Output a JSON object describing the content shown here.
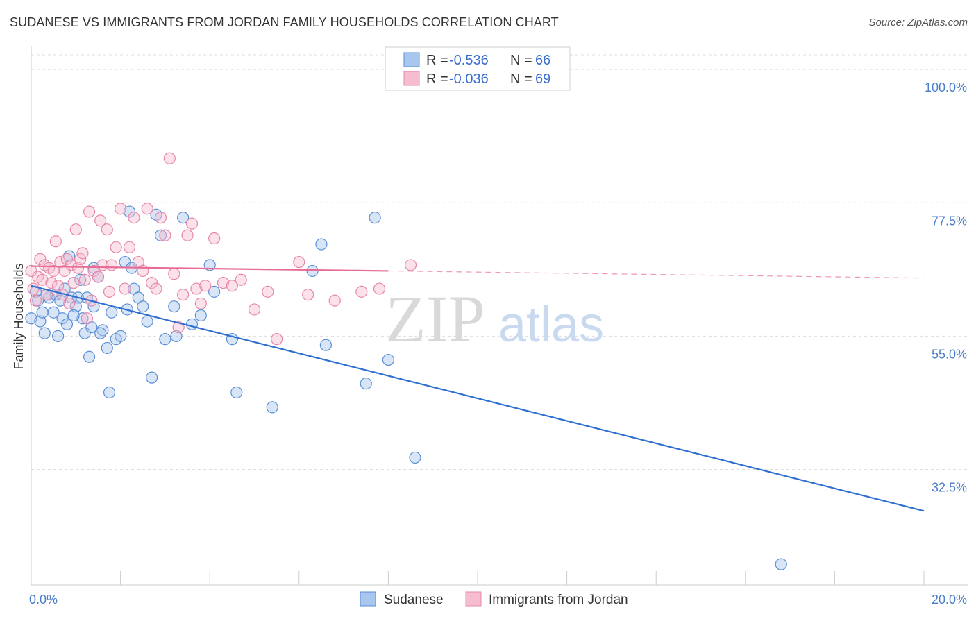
{
  "title": "SUDANESE VS IMMIGRANTS FROM JORDAN FAMILY HOUSEHOLDS CORRELATION CHART",
  "source": "Source: ZipAtlas.com",
  "watermark": {
    "zip": "ZIP",
    "atlas": "atlas"
  },
  "chart_data": {
    "type": "scatter",
    "xlabel": "",
    "ylabel": "Family Households",
    "xlim": [
      0,
      20
    ],
    "ylim": [
      13,
      104
    ],
    "x_tick_labels": [
      "0.0%",
      "20.0%"
    ],
    "y_ticks": [
      32.5,
      55.0,
      77.5,
      100.0
    ],
    "y_tick_labels": [
      "32.5%",
      "55.0%",
      "77.5%",
      "100.0%"
    ],
    "legend": {
      "entries": [
        {
          "r_label": "R =",
          "r_value": "-0.536",
          "n_label": "N =",
          "n_value": "66"
        },
        {
          "r_label": "R =",
          "r_value": "-0.036",
          "n_label": "N =",
          "n_value": "69"
        }
      ]
    },
    "series": [
      {
        "name": "Sudanese",
        "color": "#5b8fd6",
        "fill": "#a9c6ee",
        "trend": {
          "x": [
            0,
            20
          ],
          "y": [
            63.5,
            25.5
          ],
          "dashed_from": null
        },
        "points": [
          [
            0.0,
            58.0
          ],
          [
            0.1,
            62.5
          ],
          [
            0.15,
            61.0
          ],
          [
            0.2,
            57.5
          ],
          [
            0.25,
            59.0
          ],
          [
            0.3,
            55.5
          ],
          [
            0.4,
            61.5
          ],
          [
            0.5,
            59.0
          ],
          [
            0.55,
            62.0
          ],
          [
            0.6,
            55.0
          ],
          [
            0.7,
            58.0
          ],
          [
            0.75,
            63.0
          ],
          [
            0.8,
            57.0
          ],
          [
            0.85,
            68.5
          ],
          [
            0.9,
            61.5
          ],
          [
            1.0,
            60.0
          ],
          [
            1.05,
            61.5
          ],
          [
            1.1,
            64.5
          ],
          [
            1.15,
            58.0
          ],
          [
            1.2,
            55.5
          ],
          [
            1.3,
            51.5
          ],
          [
            1.35,
            56.5
          ],
          [
            1.4,
            60.0
          ],
          [
            1.5,
            65.0
          ],
          [
            1.6,
            56.0
          ],
          [
            1.7,
            53.0
          ],
          [
            1.8,
            59.0
          ],
          [
            1.9,
            54.5
          ],
          [
            2.0,
            55.0
          ],
          [
            2.1,
            67.5
          ],
          [
            2.15,
            59.5
          ],
          [
            2.2,
            76.0
          ],
          [
            2.3,
            63.0
          ],
          [
            2.4,
            61.5
          ],
          [
            2.5,
            60.0
          ],
          [
            2.6,
            57.5
          ],
          [
            2.7,
            48.0
          ],
          [
            2.8,
            75.5
          ],
          [
            2.9,
            72.0
          ],
          [
            3.0,
            54.5
          ],
          [
            3.2,
            60.0
          ],
          [
            3.4,
            75.0
          ],
          [
            3.6,
            57.0
          ],
          [
            3.8,
            58.5
          ],
          [
            4.0,
            67.0
          ],
          [
            4.1,
            62.5
          ],
          [
            4.5,
            54.5
          ],
          [
            4.6,
            45.5
          ],
          [
            5.4,
            43.0
          ],
          [
            6.3,
            66.0
          ],
          [
            6.5,
            70.5
          ],
          [
            6.6,
            53.5
          ],
          [
            7.5,
            47.0
          ],
          [
            7.7,
            75.0
          ],
          [
            8.0,
            51.0
          ],
          [
            8.6,
            34.5
          ],
          [
            16.8,
            16.5
          ],
          [
            1.4,
            66.5
          ],
          [
            0.65,
            61.0
          ],
          [
            1.25,
            61.5
          ],
          [
            1.75,
            45.5
          ],
          [
            0.95,
            58.5
          ],
          [
            2.25,
            66.5
          ],
          [
            0.35,
            62.0
          ],
          [
            1.55,
            55.5
          ],
          [
            3.25,
            55.0
          ]
        ]
      },
      {
        "name": "Immigrants from Jordan",
        "color": "#e687a8",
        "fill": "#f6bccf",
        "trend": {
          "x": [
            0,
            20
          ],
          "y": [
            66.8,
            64.8
          ],
          "dashed_from": 8.0
        },
        "points": [
          [
            0.0,
            66.0
          ],
          [
            0.05,
            63.0
          ],
          [
            0.1,
            61.0
          ],
          [
            0.15,
            65.0
          ],
          [
            0.2,
            68.0
          ],
          [
            0.25,
            64.5
          ],
          [
            0.3,
            67.0
          ],
          [
            0.35,
            62.0
          ],
          [
            0.4,
            66.5
          ],
          [
            0.45,
            64.0
          ],
          [
            0.5,
            66.0
          ],
          [
            0.55,
            71.0
          ],
          [
            0.6,
            63.5
          ],
          [
            0.65,
            67.5
          ],
          [
            0.7,
            62.0
          ],
          [
            0.75,
            66.0
          ],
          [
            0.8,
            68.0
          ],
          [
            0.85,
            60.5
          ],
          [
            0.9,
            67.0
          ],
          [
            0.95,
            64.0
          ],
          [
            1.0,
            73.0
          ],
          [
            1.05,
            66.5
          ],
          [
            1.1,
            68.0
          ],
          [
            1.15,
            69.0
          ],
          [
            1.2,
            64.5
          ],
          [
            1.3,
            76.0
          ],
          [
            1.35,
            61.0
          ],
          [
            1.4,
            66.0
          ],
          [
            1.5,
            65.0
          ],
          [
            1.55,
            74.5
          ],
          [
            1.6,
            67.0
          ],
          [
            1.7,
            73.0
          ],
          [
            1.75,
            62.5
          ],
          [
            1.8,
            67.0
          ],
          [
            1.9,
            70.0
          ],
          [
            2.0,
            76.5
          ],
          [
            2.1,
            63.0
          ],
          [
            2.2,
            70.0
          ],
          [
            2.3,
            75.0
          ],
          [
            2.4,
            67.5
          ],
          [
            2.5,
            66.0
          ],
          [
            2.6,
            76.5
          ],
          [
            2.7,
            64.0
          ],
          [
            2.8,
            63.0
          ],
          [
            2.9,
            75.0
          ],
          [
            3.0,
            72.0
          ],
          [
            3.1,
            85.0
          ],
          [
            3.2,
            65.5
          ],
          [
            3.3,
            56.5
          ],
          [
            3.4,
            62.0
          ],
          [
            3.5,
            72.0
          ],
          [
            3.6,
            74.0
          ],
          [
            3.7,
            63.0
          ],
          [
            3.8,
            60.5
          ],
          [
            3.9,
            63.5
          ],
          [
            4.1,
            71.5
          ],
          [
            4.3,
            64.0
          ],
          [
            4.5,
            63.5
          ],
          [
            4.7,
            64.5
          ],
          [
            5.0,
            59.5
          ],
          [
            5.3,
            62.5
          ],
          [
            5.5,
            54.5
          ],
          [
            6.0,
            67.5
          ],
          [
            6.2,
            62.0
          ],
          [
            6.8,
            61.0
          ],
          [
            7.4,
            62.5
          ],
          [
            7.8,
            63.0
          ],
          [
            8.5,
            67.0
          ],
          [
            1.25,
            58.0
          ]
        ]
      }
    ]
  }
}
